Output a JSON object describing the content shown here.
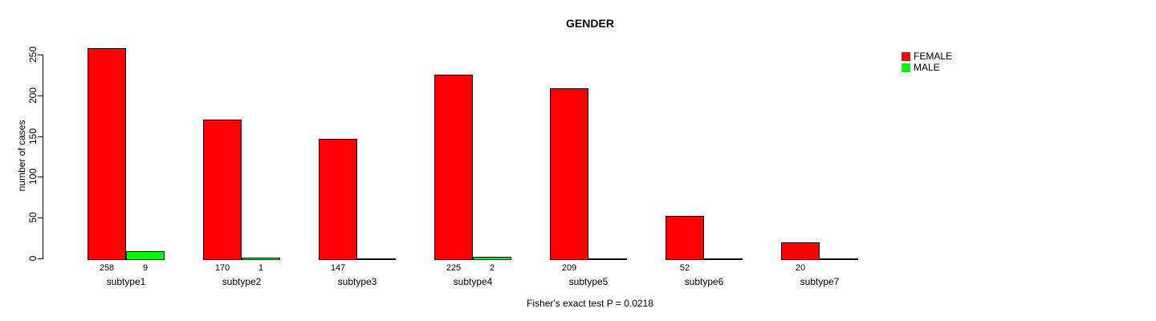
{
  "chart_data": {
    "type": "bar",
    "title": "GENDER",
    "ylabel": "number of cases",
    "xlabel": "",
    "categories": [
      "subtype1",
      "subtype2",
      "subtype3",
      "subtype4",
      "subtype5",
      "subtype6",
      "subtype7"
    ],
    "series": [
      {
        "name": "FEMALE",
        "color": "#ff0000",
        "values": [
          258,
          170,
          147,
          225,
          209,
          52,
          20
        ]
      },
      {
        "name": "MALE",
        "color": "#00ff00",
        "values": [
          9,
          1,
          0,
          2,
          0,
          0,
          0
        ]
      }
    ],
    "yticks": [
      0,
      50,
      100,
      150,
      200,
      250
    ],
    "ylim": [
      0,
      250
    ],
    "grid": false,
    "legend_position": "top-right",
    "show_value_labels": true,
    "zero_value_labels_hidden": true,
    "annotation": "Fisher's exact test P = 0.0218",
    "axis_color": "#000000",
    "text_color": "#000000",
    "background_color": "#ffffff"
  }
}
